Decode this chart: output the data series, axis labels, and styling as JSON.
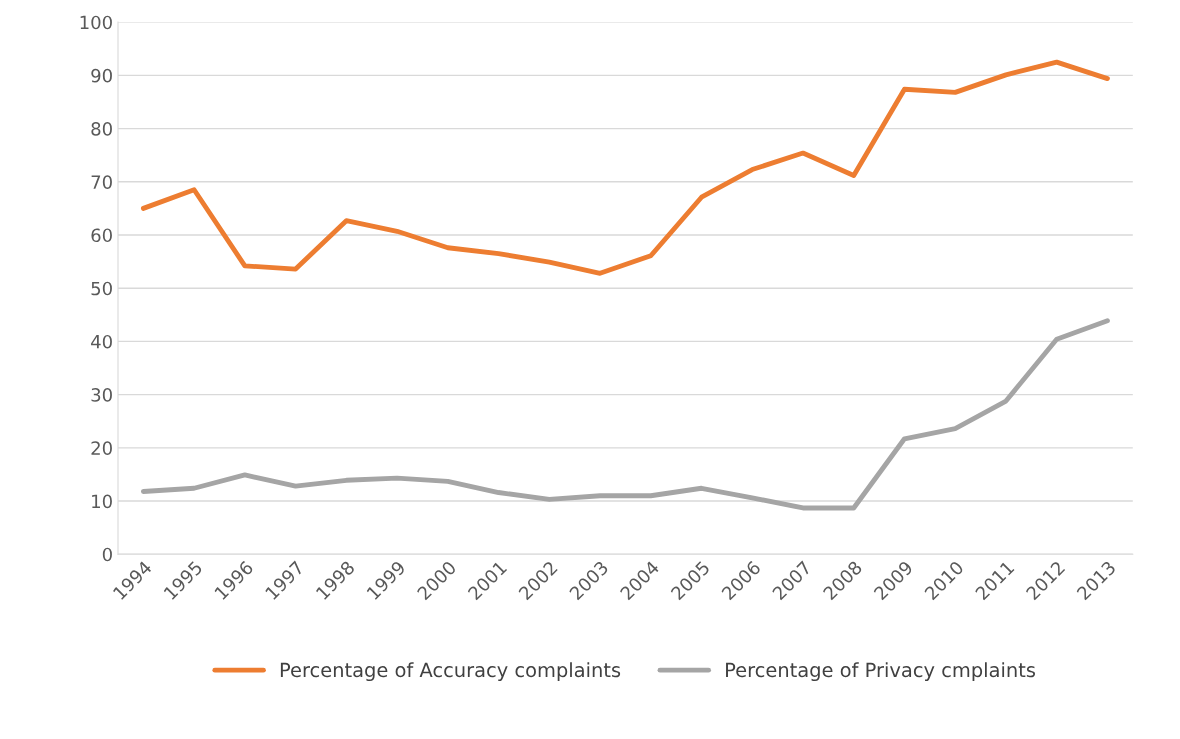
{
  "chart_data": {
    "type": "line",
    "categories": [
      "1994",
      "1995",
      "1996",
      "1997",
      "1998",
      "1999",
      "2000",
      "2001",
      "2002",
      "2003",
      "2004",
      "2005",
      "2006",
      "2007",
      "2008",
      "2009",
      "2010",
      "2011",
      "2012",
      "2013"
    ],
    "series": [
      {
        "name": "Percentage of Accuracy complaints",
        "color": "#ed7d31",
        "values": [
          65.0,
          68.5,
          54.2,
          53.6,
          62.7,
          60.7,
          57.6,
          56.5,
          54.9,
          52.8,
          56.1,
          67.1,
          72.3,
          75.4,
          71.2,
          87.4,
          86.8,
          90.1,
          92.5,
          89.4
        ]
      },
      {
        "name": "Percentage of Privacy cmplaints",
        "color": "#a5a5a5",
        "values": [
          11.8,
          12.4,
          14.9,
          12.8,
          13.9,
          14.3,
          13.7,
          11.6,
          10.3,
          11.0,
          11.0,
          12.4,
          10.6,
          8.7,
          8.7,
          21.7,
          23.6,
          28.8,
          40.4,
          43.9
        ]
      }
    ],
    "ylim": [
      0,
      100
    ],
    "yticks": [
      0,
      10,
      20,
      30,
      40,
      50,
      60,
      70,
      80,
      90,
      100
    ],
    "grid": "y",
    "legend": "bottom",
    "marker": "none",
    "line_style": "solid"
  }
}
